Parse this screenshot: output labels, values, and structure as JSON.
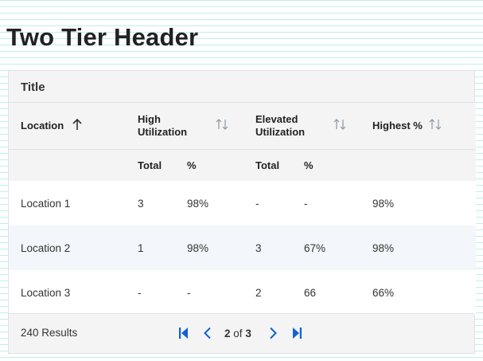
{
  "page": {
    "title": "Two Tier Header"
  },
  "table": {
    "title": "Title",
    "columns": {
      "location": "Location",
      "high_utilization": "High Utilization",
      "elevated_utilization": "Elevated Utilization",
      "highest_pct": "Highest %"
    },
    "subheaders": {
      "high_total": "Total",
      "high_pct": "%",
      "elev_total": "Total",
      "elev_pct": "%"
    },
    "rows": [
      {
        "location": "Location 1",
        "high_total": "3",
        "high_pct": "98%",
        "elev_total": "-",
        "elev_pct": "-",
        "highest": "98%"
      },
      {
        "location": "Location 2",
        "high_total": "1",
        "high_pct": "98%",
        "elev_total": "3",
        "elev_pct": "67%",
        "highest": "98%"
      },
      {
        "location": "Location 3",
        "high_total": "-",
        "high_pct": "-",
        "elev_total": "2",
        "elev_pct": "66",
        "highest": "66%"
      }
    ]
  },
  "footer": {
    "results": "240 Results",
    "current_page": "2",
    "of_label": "of",
    "total_pages": "3"
  },
  "colors": {
    "accent": "#0f62d6",
    "sort_icon": "#8d96a0",
    "grid_lines": "#bff0e8"
  },
  "icons": {
    "sort_active": "arrow-up-icon",
    "sort_inactive": "sort-arrows-icon",
    "first_page": "first-page-icon",
    "prev_page": "chevron-left-icon",
    "next_page": "chevron-right-icon",
    "last_page": "last-page-icon"
  }
}
